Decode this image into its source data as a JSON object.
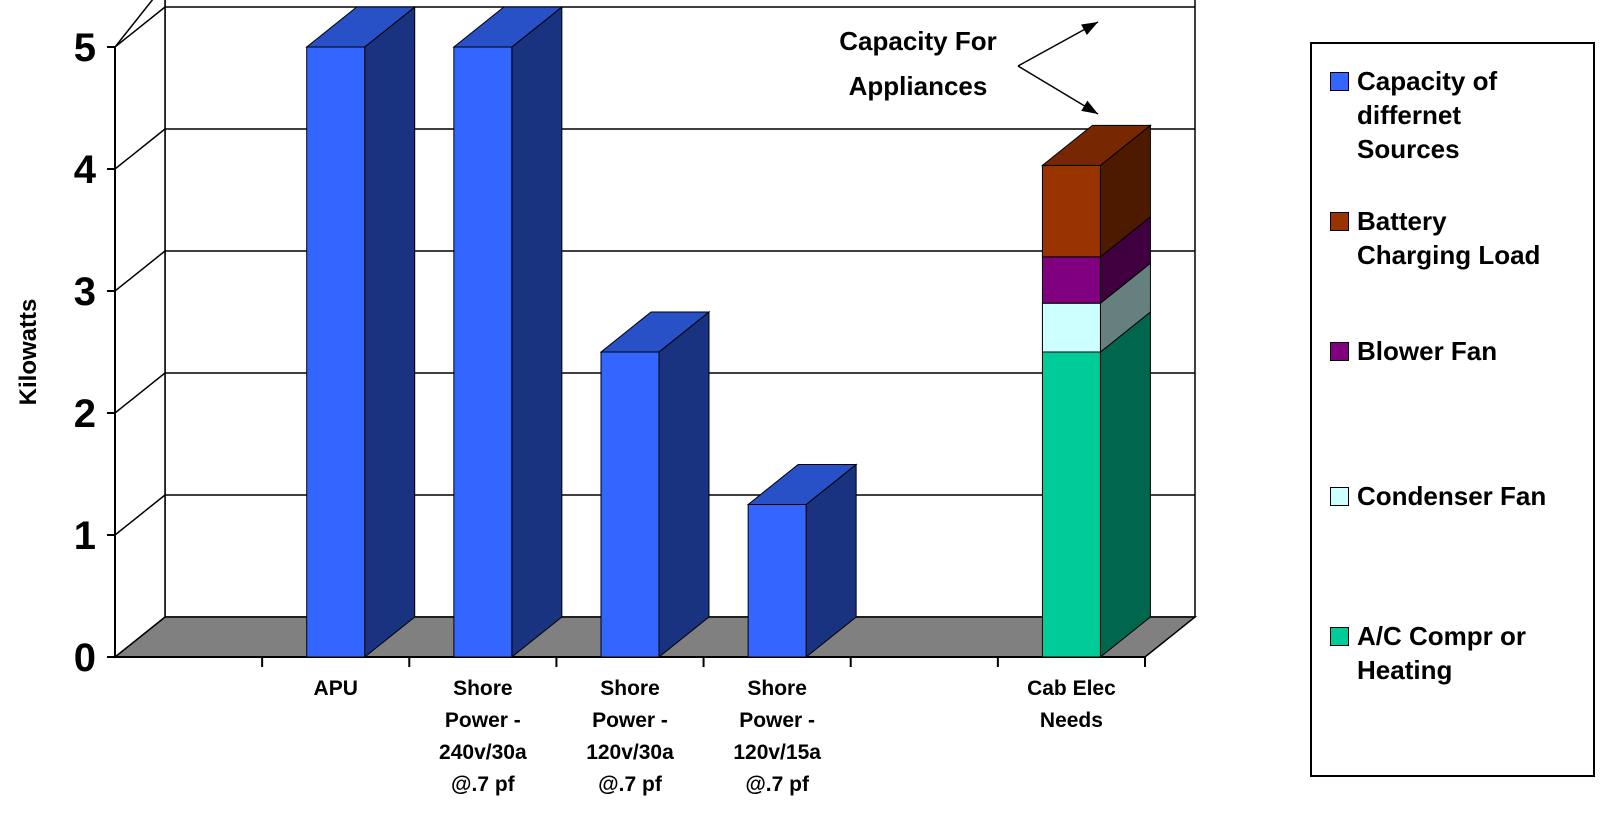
{
  "chart_data": {
    "type": "bar",
    "subtype": "3d-stacked-column",
    "ylabel": "Kilowatts",
    "xlabel": "",
    "ylim": [
      0,
      5
    ],
    "yticks": [
      "0",
      "1",
      "2",
      "3",
      "4",
      "5"
    ],
    "grid": true,
    "legend_position": "right",
    "categories": [
      {
        "label_lines": [
          "APU"
        ]
      },
      {
        "label_lines": [
          "Shore",
          "Power -",
          "240v/30a",
          "@.7 pf"
        ]
      },
      {
        "label_lines": [
          "Shore",
          "Power -",
          "120v/30a",
          "@.7 pf"
        ]
      },
      {
        "label_lines": [
          "Shore",
          "Power -",
          "120v/15a",
          "@.7 pf"
        ]
      },
      {
        "label_lines": []
      },
      {
        "label_lines": [
          "Cab Elec",
          "Needs"
        ]
      }
    ],
    "series": [
      {
        "name": "Capacity of differnet Sources",
        "color": "#3366FF",
        "values": [
          5,
          5,
          2.5,
          1.25,
          0,
          0
        ]
      },
      {
        "name": "A/C Compr or Heating",
        "color": "#00CC99",
        "values": [
          0,
          0,
          0,
          0,
          0,
          2.5
        ]
      },
      {
        "name": "Condenser Fan",
        "color": "#CCFFFF",
        "values": [
          0,
          0,
          0,
          0,
          0,
          0.4
        ]
      },
      {
        "name": "Blower Fan",
        "color": "#800080",
        "values": [
          0,
          0,
          0,
          0,
          0,
          0.38
        ]
      },
      {
        "name": "Battery Charging Load",
        "color": "#993300",
        "values": [
          0,
          0,
          0,
          0,
          0,
          0.75
        ]
      }
    ],
    "annotation": {
      "lines": [
        "Capacity For",
        "Appliances"
      ]
    },
    "legend": [
      {
        "lines": [
          "Capacity of",
          "differnet",
          "Sources"
        ],
        "color": "#3366FF"
      },
      {
        "lines": [
          "Battery",
          "Charging Load"
        ],
        "color": "#993300"
      },
      {
        "lines": [
          "Blower Fan"
        ],
        "color": "#800080"
      },
      {
        "lines": [
          "Condenser Fan"
        ],
        "color": "#CCFFFF"
      },
      {
        "lines": [
          "A/C Compr or",
          "Heating"
        ],
        "color": "#00CC99"
      }
    ]
  }
}
